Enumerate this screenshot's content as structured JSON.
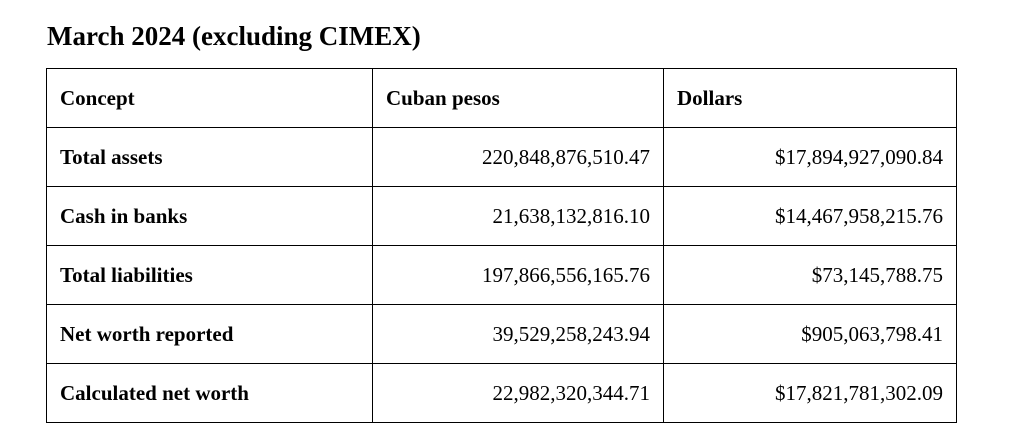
{
  "title": "March 2024 (excluding CIMEX)",
  "table": {
    "headers": [
      "Concept",
      "Cuban pesos",
      "Dollars"
    ],
    "rows": [
      {
        "concept": "Total assets",
        "pesos": "220,848,876,510.47",
        "dollars": "$17,894,927,090.84"
      },
      {
        "concept": "Cash in banks",
        "pesos": "21,638,132,816.10",
        "dollars": "$14,467,958,215.76"
      },
      {
        "concept": "Total liabilities",
        "pesos": "197,866,556,165.76",
        "dollars": "$73,145,788.75"
      },
      {
        "concept": "Net worth reported",
        "pesos": "39,529,258,243.94",
        "dollars": "$905,063,798.41"
      },
      {
        "concept": "Calculated net worth",
        "pesos": "22,982,320,344.71",
        "dollars": "$17,821,781,302.09"
      }
    ]
  }
}
